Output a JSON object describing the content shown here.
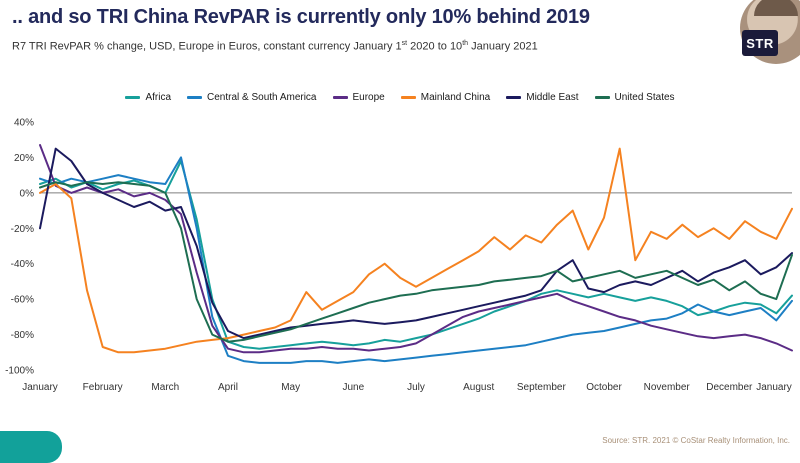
{
  "header": {
    "title": ".. and so TRI China RevPAR is currently only 10% behind 2019",
    "subtitle": {
      "part1": "R7 TRI RevPAR % change, USD, Europe in Euros, constant currency January 1",
      "sup1": "st",
      "part2": " 2020 to 10",
      "sup2": "th",
      "part3": " January 2021"
    },
    "avatar_label": "STR"
  },
  "footer": {
    "source": "Source: STR. 2021 © CoStar Realty Information, Inc."
  },
  "colors": {
    "title": "#232a5c",
    "subtitle": "#333333",
    "axis_text": "#333333",
    "zero_line": "#7f7f7f",
    "source_text": "#a89078",
    "pill": "#12a19a",
    "background": "#ffffff"
  },
  "chart_data": {
    "type": "line",
    "title": ".. and so TRI China RevPAR is currently only 10% behind 2019",
    "subtitle": "R7 TRI RevPAR % change, USD, Europe in Euros, constant currency January 1st 2020 to 10th January 2021",
    "legend_position": "top",
    "grid": false,
    "zero_line": true,
    "x_axis": {
      "tick_labels": [
        "January",
        "February",
        "March",
        "April",
        "May",
        "June",
        "July",
        "August",
        "September",
        "October",
        "November",
        "December",
        "January"
      ],
      "range_months": [
        0,
        12
      ],
      "unit_months_per_point": 0.25
    },
    "y_axis": {
      "unit": "percent",
      "ylim": [
        -100,
        40
      ],
      "tick_step": 20,
      "tick_labels": [
        "40%",
        "20%",
        "0%",
        "-20%",
        "-40%",
        "-60%",
        "-80%",
        "-100%"
      ]
    },
    "series": [
      {
        "name": "Africa",
        "color": "#17a09b",
        "values": [
          5,
          8,
          3,
          6,
          2,
          5,
          7,
          4,
          0,
          18,
          -15,
          -60,
          -84,
          -87,
          -88,
          -87,
          -86,
          -85,
          -84,
          -85,
          -86,
          -85,
          -83,
          -84,
          -82,
          -80,
          -77,
          -74,
          -71,
          -67,
          -64,
          -61,
          -57,
          -55,
          -57,
          -59,
          -57,
          -59,
          -61,
          -59,
          -61,
          -64,
          -69,
          -67,
          -64,
          -62,
          -63,
          -68,
          -58
        ]
      },
      {
        "name": "Central & South America",
        "color": "#1d7fc4",
        "values": [
          8,
          5,
          8,
          6,
          8,
          10,
          8,
          6,
          5,
          20,
          -20,
          -70,
          -92,
          -95,
          -96,
          -96,
          -96,
          -95,
          -95,
          -96,
          -95,
          -94,
          -95,
          -94,
          -93,
          -92,
          -91,
          -90,
          -89,
          -88,
          -87,
          -86,
          -84,
          -82,
          -80,
          -79,
          -78,
          -76,
          -74,
          -72,
          -71,
          -68,
          -63,
          -67,
          -69,
          -67,
          -65,
          -72,
          -61
        ]
      },
      {
        "name": "Europe",
        "color": "#5b2c86",
        "values": [
          27,
          4,
          0,
          3,
          0,
          2,
          -2,
          0,
          -4,
          -12,
          -45,
          -75,
          -88,
          -90,
          -90,
          -89,
          -88,
          -88,
          -87,
          -88,
          -88,
          -89,
          -88,
          -87,
          -85,
          -80,
          -75,
          -70,
          -67,
          -65,
          -63,
          -61,
          -59,
          -57,
          -61,
          -64,
          -67,
          -70,
          -72,
          -75,
          -77,
          -79,
          -81,
          -82,
          -81,
          -80,
          -82,
          -85,
          -89
        ]
      },
      {
        "name": "Mainland China",
        "color": "#f58220",
        "values": [
          0,
          5,
          -3,
          -55,
          -87,
          -90,
          -90,
          -89,
          -88,
          -86,
          -84,
          -83,
          -82,
          -80,
          -78,
          -76,
          -72,
          -56,
          -66,
          -61,
          -56,
          -46,
          -40,
          -48,
          -53,
          -48,
          -43,
          -38,
          -33,
          -25,
          -32,
          -24,
          -28,
          -18,
          -10,
          -32,
          -14,
          25,
          -38,
          -22,
          -26,
          -18,
          -25,
          -20,
          -26,
          -16,
          -22,
          -26,
          -9
        ]
      },
      {
        "name": "Middle East",
        "color": "#1b1a5e",
        "values": [
          -20,
          25,
          18,
          5,
          0,
          -4,
          -8,
          -5,
          -10,
          -8,
          -30,
          -62,
          -78,
          -82,
          -80,
          -78,
          -76,
          -75,
          -74,
          -73,
          -72,
          -73,
          -74,
          -73,
          -72,
          -70,
          -68,
          -66,
          -64,
          -62,
          -60,
          -58,
          -55,
          -44,
          -38,
          -54,
          -56,
          -52,
          -50,
          -52,
          -48,
          -44,
          -50,
          -45,
          -42,
          -38,
          -46,
          -42,
          -34
        ]
      },
      {
        "name": "United States",
        "color": "#1e6e52",
        "values": [
          3,
          6,
          4,
          6,
          5,
          6,
          5,
          4,
          0,
          -20,
          -60,
          -80,
          -84,
          -83,
          -81,
          -79,
          -77,
          -74,
          -71,
          -68,
          -65,
          -62,
          -60,
          -58,
          -57,
          -55,
          -54,
          -53,
          -52,
          -50,
          -49,
          -48,
          -47,
          -44,
          -50,
          -48,
          -46,
          -44,
          -48,
          -46,
          -44,
          -48,
          -52,
          -49,
          -55,
          -50,
          -57,
          -60,
          -35
        ]
      }
    ]
  }
}
